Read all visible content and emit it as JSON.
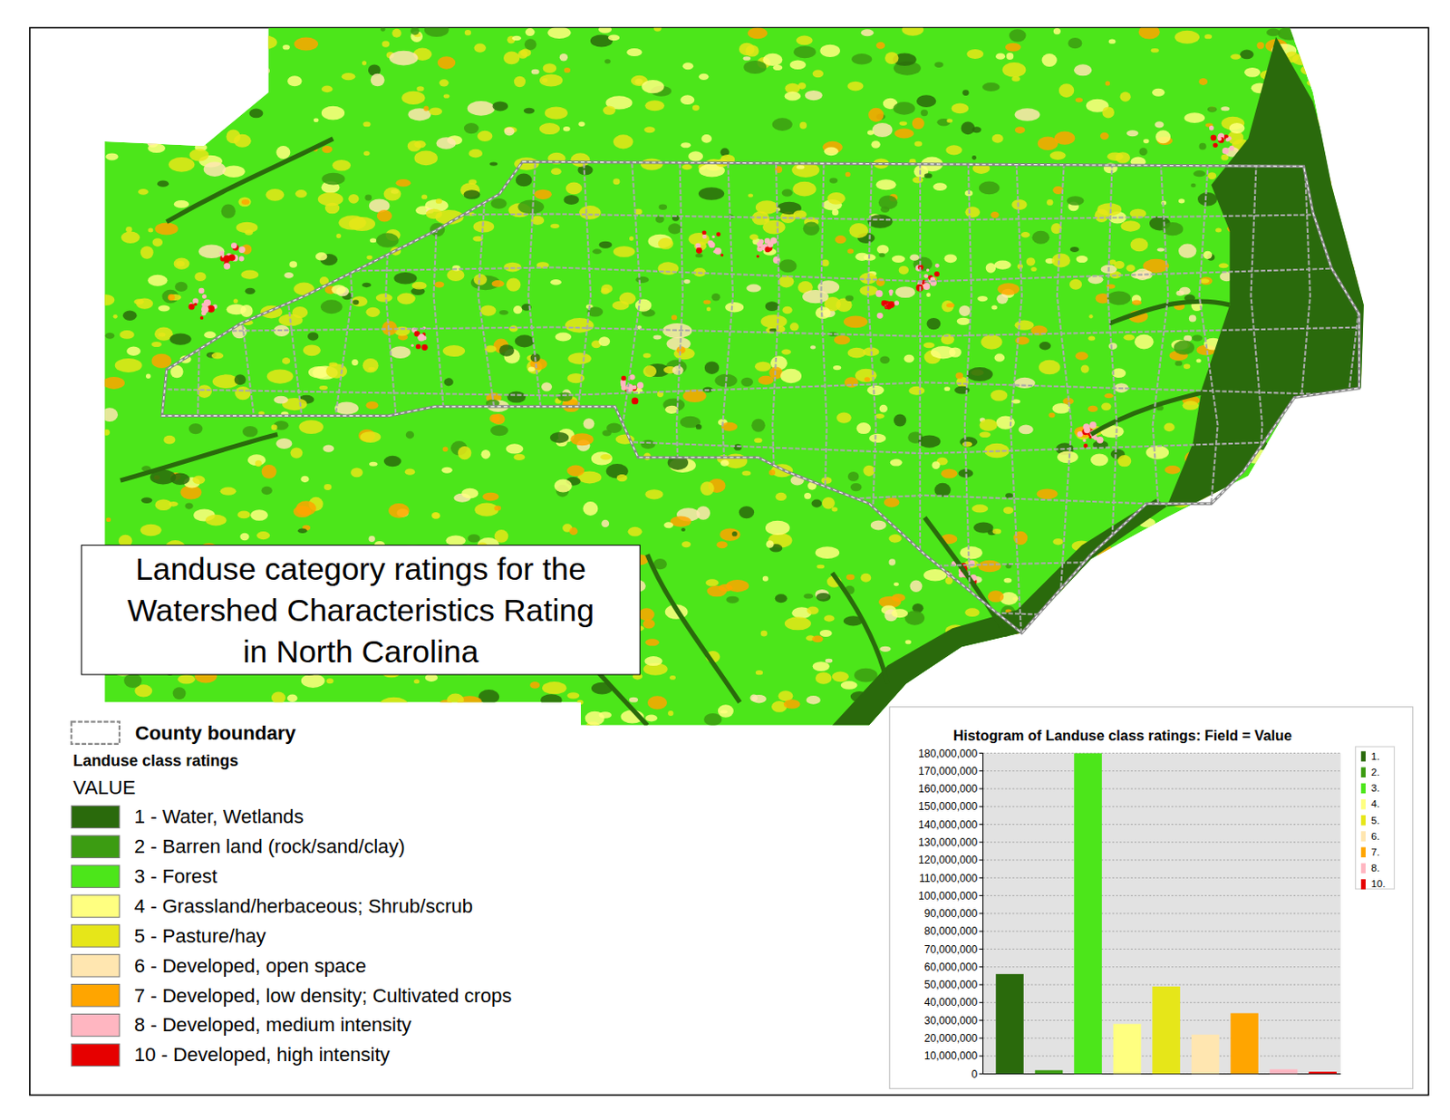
{
  "map": {
    "title_lines": [
      "Landuse category ratings for the",
      "Watershed Characteristics Rating",
      "in North Carolina"
    ],
    "legend": {
      "boundary_label": "County boundary",
      "heading": "Landuse class ratings",
      "field": "VALUE",
      "items": [
        {
          "label": "1 - Water, Wetlands",
          "color": "#2a6a0c"
        },
        {
          "label": "2 - Barren land (rock/sand/clay)",
          "color": "#3c9c12"
        },
        {
          "label": "3 - Forest",
          "color": "#4ce61a"
        },
        {
          "label": "4 - Grassland/herbaceous; Shrub/scrub",
          "color": "#ffff80"
        },
        {
          "label": "5 - Pasture/hay",
          "color": "#e6e619"
        },
        {
          "label": "6 - Developed, open space",
          "color": "#ffe6b0"
        },
        {
          "label": "7 - Developed, low density; Cultivated crops",
          "color": "#ffa500"
        },
        {
          "label": "8 - Developed, medium intensity",
          "color": "#ffb6c1"
        },
        {
          "label": "10 - Developed, high intensity",
          "color": "#e60000"
        }
      ]
    }
  },
  "chart_data": {
    "type": "bar",
    "title": "Histogram of Landuse class ratings: Field = Value",
    "categories": [
      "1.",
      "2.",
      "3.",
      "4.",
      "5.",
      "6.",
      "7.",
      "8.",
      "10."
    ],
    "values": [
      56000000,
      2000000,
      180000000,
      28000000,
      49000000,
      22000000,
      34000000,
      2500000,
      1200000
    ],
    "colors": [
      "#2a6a0c",
      "#3c9c12",
      "#4ce61a",
      "#ffff80",
      "#e6e619",
      "#ffe6b0",
      "#ffa500",
      "#ffb6c1",
      "#e60000"
    ],
    "ylim": [
      0,
      180000000
    ],
    "yticks": [
      0,
      {
        "value": 10000000,
        "label": "10,000,000"
      },
      {
        "value": 20000000,
        "label": "20,000,000"
      },
      {
        "value": 30000000,
        "label": "30,000,000"
      },
      {
        "value": 40000000,
        "label": "40,000,000"
      },
      {
        "value": 50000000,
        "label": "50,000,000"
      },
      {
        "value": 60000000,
        "label": "60,000,000"
      },
      {
        "value": 70000000,
        "label": "70,000,000"
      },
      {
        "value": 80000000,
        "label": "80,000,000"
      },
      {
        "value": 90000000,
        "label": "90,000,000"
      },
      {
        "value": 100000000,
        "label": "100,000,000"
      },
      {
        "value": 110000000,
        "label": "110,000,000"
      },
      {
        "value": 120000000,
        "label": "120,000,000"
      },
      {
        "value": 130000000,
        "label": "130,000,000"
      },
      {
        "value": 140000000,
        "label": "140,000,000"
      },
      {
        "value": 150000000,
        "label": "150,000,000"
      },
      {
        "value": 160000000,
        "label": "160,000,000"
      },
      {
        "value": 170000000,
        "label": "170,000,000"
      },
      {
        "value": 180000000,
        "label": "180,000,000"
      }
    ],
    "grid": true,
    "legend": "right",
    "tick_labels": "y"
  }
}
